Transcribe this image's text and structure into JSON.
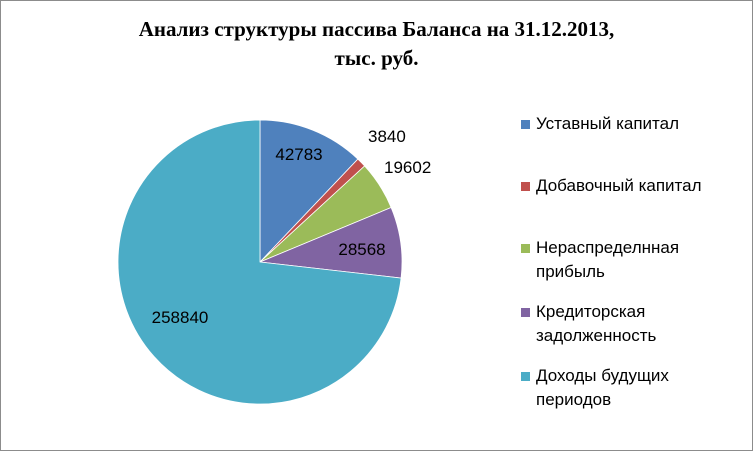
{
  "chart_data": {
    "type": "pie",
    "title_line1": "Анализ структуры пассива Баланса на 31.12.2013,",
    "title_line2": "тыс. руб.",
    "start_angle_deg": 0,
    "direction": "clockwise",
    "legend_position": "right",
    "slices": [
      {
        "label": "Уставный капитал",
        "value": 42783,
        "value_label": "42783",
        "color": "#4f81bd"
      },
      {
        "label": "Добавочный капитал",
        "value": 3840,
        "value_label": "3840",
        "color": "#c0504d"
      },
      {
        "label": "Нераспределнная прибыль",
        "value": 19602,
        "value_label": "19602",
        "color": "#9bbb59"
      },
      {
        "label": "Кредиторская задолженность",
        "value": 28568,
        "value_label": "28568",
        "color": "#8064a2"
      },
      {
        "label": "Доходы будущих периодов",
        "value": 258840,
        "value_label": "258840",
        "color": "#4bacc6"
      }
    ]
  }
}
